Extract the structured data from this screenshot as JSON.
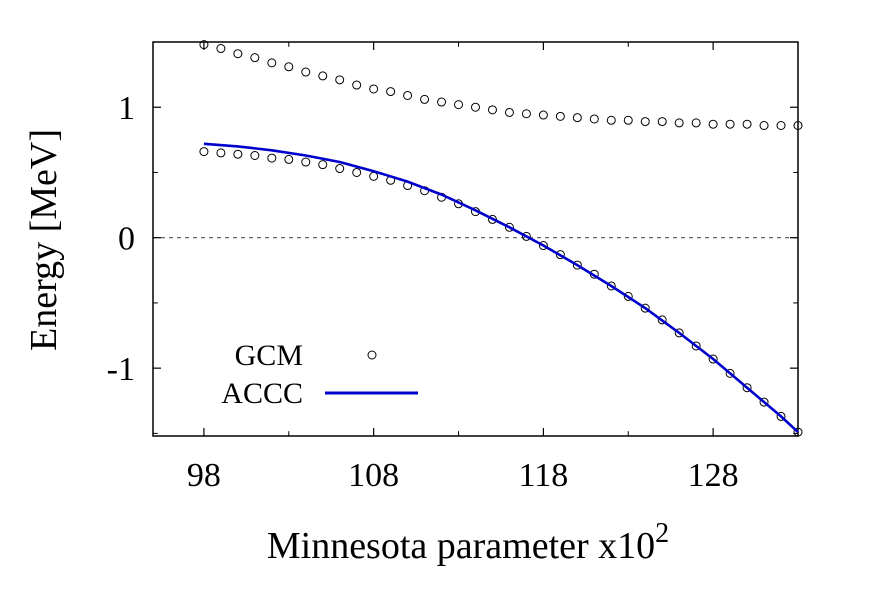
{
  "chart_data": {
    "type": "line",
    "xlabel": "Minnesota parameter x10",
    "xlabel_superscript": "2",
    "ylabel": "Energy [MeV]",
    "xlim": [
      95,
      133
    ],
    "ylim": [
      -1.52,
      1.5
    ],
    "xticks": [
      98,
      108,
      118,
      128
    ],
    "xtick_labels": [
      "98",
      "108",
      "118",
      "128"
    ],
    "yticks": [
      -1,
      0,
      1
    ],
    "ytick_labels": [
      "-1",
      "0",
      "1"
    ],
    "grid": false,
    "zero_line": true,
    "legend_position": "bottom-left",
    "series": [
      {
        "name": "GCM",
        "style": "open-circle",
        "color": "#000000",
        "x": [
          98,
          99,
          100,
          101,
          102,
          103,
          104,
          105,
          106,
          107,
          108,
          109,
          110,
          111,
          112,
          113,
          114,
          115,
          116,
          117,
          118,
          119,
          120,
          121,
          122,
          123,
          124,
          125,
          126,
          127,
          128,
          129,
          130,
          131,
          132,
          133
        ],
        "y": [
          1.48,
          1.45,
          1.41,
          1.38,
          1.34,
          1.31,
          1.27,
          1.24,
          1.21,
          1.17,
          1.14,
          1.12,
          1.09,
          1.06,
          1.04,
          1.02,
          1.0,
          0.98,
          0.96,
          0.95,
          0.94,
          0.93,
          0.92,
          0.91,
          0.9,
          0.9,
          0.89,
          0.89,
          0.88,
          0.88,
          0.87,
          0.87,
          0.87,
          0.86,
          0.86,
          0.86
        ]
      },
      {
        "name": "GCM",
        "style": "open-circle",
        "color": "#000000",
        "x": [
          98,
          99,
          100,
          101,
          102,
          103,
          104,
          105,
          106,
          107,
          108,
          109,
          110,
          111,
          112,
          113,
          114,
          115,
          116,
          117,
          118,
          119,
          120,
          121,
          122,
          123,
          124,
          125,
          126,
          127,
          128,
          129,
          130,
          131,
          132,
          133
        ],
        "y": [
          0.66,
          0.65,
          0.64,
          0.63,
          0.61,
          0.6,
          0.58,
          0.56,
          0.53,
          0.5,
          0.47,
          0.44,
          0.4,
          0.36,
          0.31,
          0.26,
          0.2,
          0.14,
          0.08,
          0.01,
          -0.06,
          -0.13,
          -0.21,
          -0.28,
          -0.37,
          -0.45,
          -0.54,
          -0.63,
          -0.73,
          -0.83,
          -0.93,
          -1.04,
          -1.15,
          -1.26,
          -1.37,
          -1.49
        ]
      },
      {
        "name": "ACCC",
        "style": "line",
        "color": "#0000cc",
        "x": [
          98,
          100,
          102,
          104,
          106,
          108,
          110,
          112,
          114,
          116,
          118,
          120,
          122,
          124,
          126,
          128,
          130,
          132,
          133
        ],
        "y": [
          0.72,
          0.7,
          0.67,
          0.63,
          0.58,
          0.51,
          0.43,
          0.33,
          0.21,
          0.08,
          -0.06,
          -0.21,
          -0.37,
          -0.54,
          -0.73,
          -0.93,
          -1.15,
          -1.37,
          -1.49
        ]
      }
    ]
  },
  "legend": {
    "entries": [
      {
        "label": "GCM",
        "style": "open-circle"
      },
      {
        "label": "ACCC",
        "style": "line"
      }
    ]
  },
  "colors": {
    "accc_line": "#0000cc",
    "gcm_marker": "#000000",
    "zero_line": "#555555"
  }
}
